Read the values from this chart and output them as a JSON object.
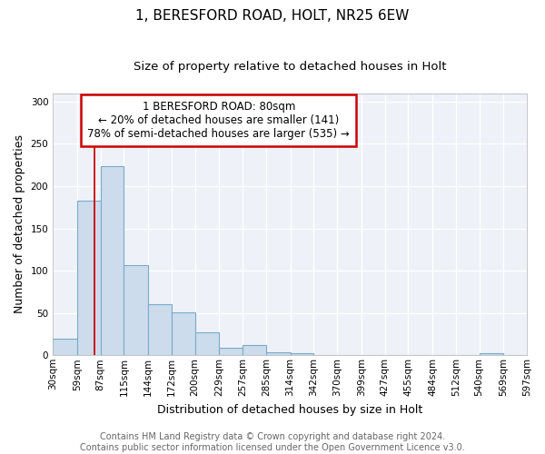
{
  "title1": "1, BERESFORD ROAD, HOLT, NR25 6EW",
  "title2": "Size of property relative to detached houses in Holt",
  "xlabel": "Distribution of detached houses by size in Holt",
  "ylabel": "Number of detached properties",
  "bar_values": [
    20,
    183,
    224,
    107,
    60,
    51,
    27,
    9,
    12,
    4,
    2,
    0,
    0,
    0,
    0,
    0,
    0,
    0,
    2,
    0,
    0
  ],
  "bin_edges": [
    30,
    59,
    87,
    115,
    144,
    172,
    200,
    229,
    257,
    285,
    314,
    342,
    370,
    399,
    427,
    455,
    484,
    512,
    540,
    569,
    597
  ],
  "tick_labels": [
    "30sqm",
    "59sqm",
    "87sqm",
    "115sqm",
    "144sqm",
    "172sqm",
    "200sqm",
    "229sqm",
    "257sqm",
    "285sqm",
    "314sqm",
    "342sqm",
    "370sqm",
    "399sqm",
    "427sqm",
    "455sqm",
    "484sqm",
    "512sqm",
    "540sqm",
    "569sqm",
    "597sqm"
  ],
  "bar_color": "#ccdcec",
  "bar_edge_color": "#7aaac8",
  "red_line_x": 80,
  "annotation_title": "1 BERESFORD ROAD: 80sqm",
  "annotation_line1": "← 20% of detached houses are smaller (141)",
  "annotation_line2": "78% of semi-detached houses are larger (535) →",
  "annotation_box_color": "#ffffff",
  "annotation_border_color": "#cc0000",
  "red_line_color": "#cc0000",
  "ylim": [
    0,
    310
  ],
  "yticks": [
    0,
    50,
    100,
    150,
    200,
    250,
    300
  ],
  "footer1": "Contains HM Land Registry data © Crown copyright and database right 2024.",
  "footer2": "Contains public sector information licensed under the Open Government Licence v3.0.",
  "fig_background": "#ffffff",
  "plot_background": "#eef2f8",
  "grid_color": "#ffffff",
  "title1_fontsize": 11,
  "title2_fontsize": 9.5,
  "axis_label_fontsize": 9,
  "tick_fontsize": 7.5,
  "footer_fontsize": 7,
  "annotation_fontsize": 8.5
}
